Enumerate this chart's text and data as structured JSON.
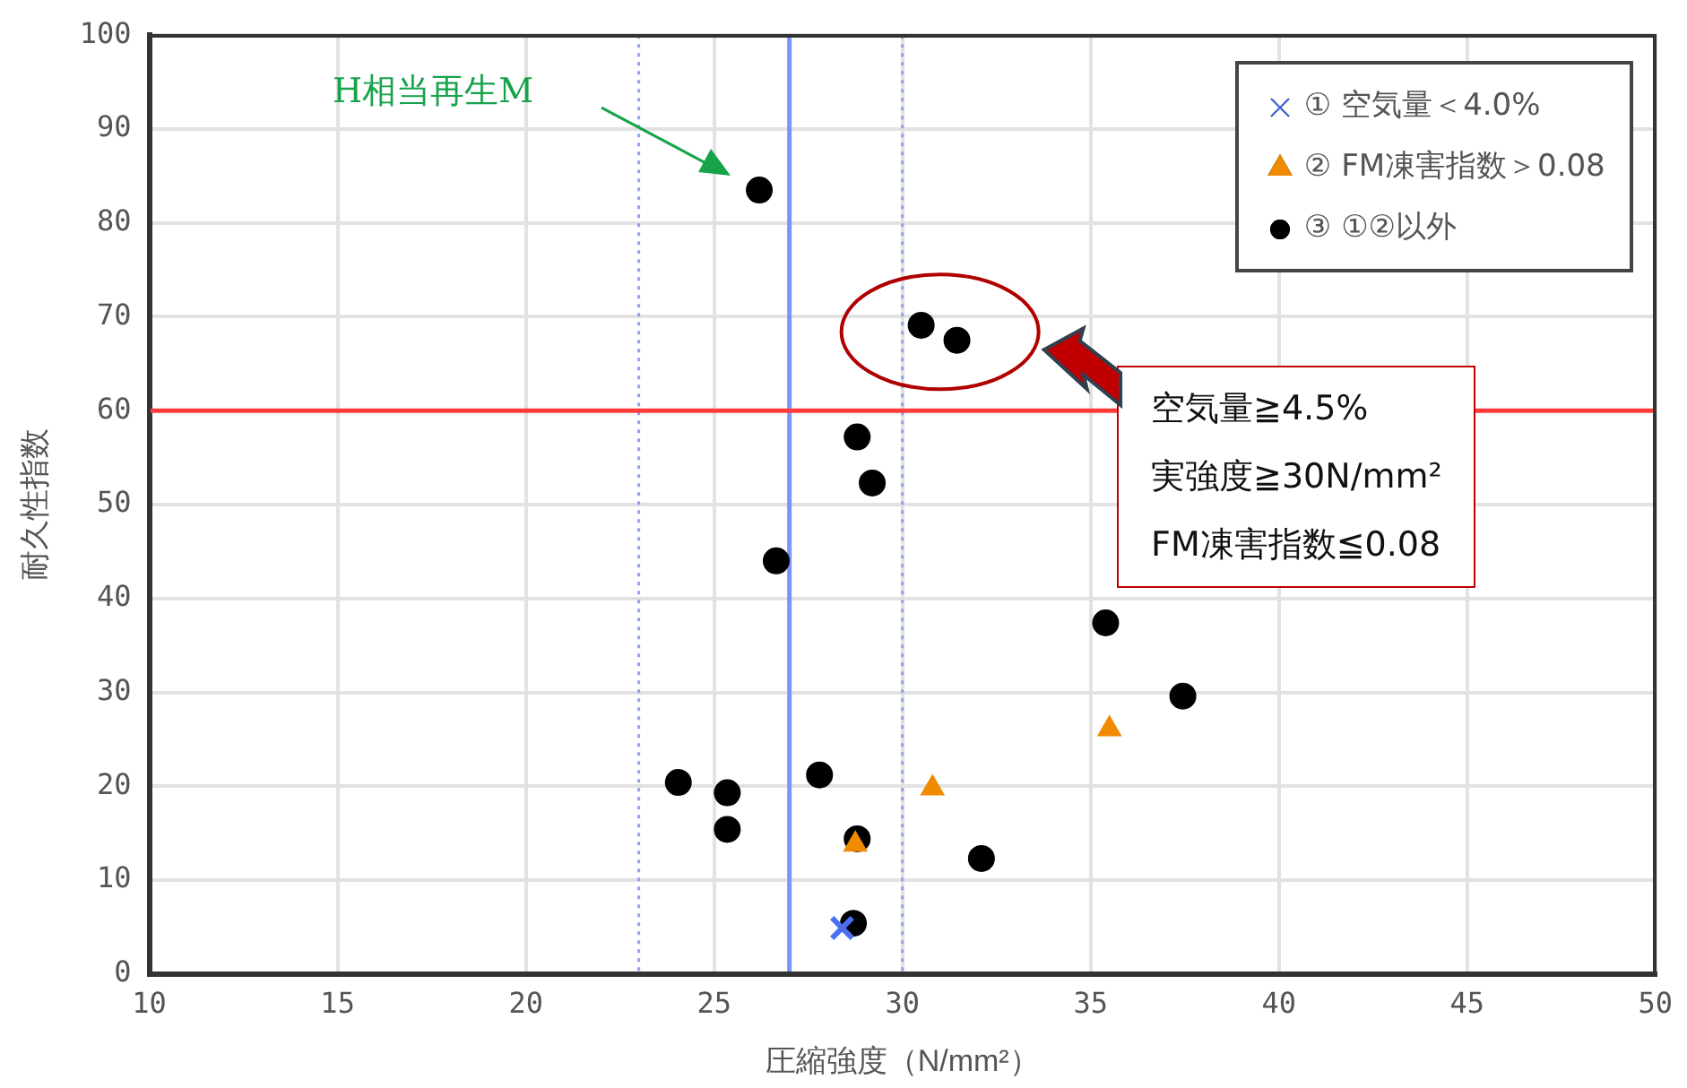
{
  "chart_data": {
    "type": "scatter",
    "xlabel": "圧縮強度（N/mm²）",
    "ylabel": "耐久性指数",
    "xlim": [
      10,
      50
    ],
    "xticks": [
      10,
      15,
      20,
      25,
      30,
      35,
      40,
      45,
      50
    ],
    "ylim": [
      0,
      100
    ],
    "yticks": [
      0,
      10,
      20,
      30,
      40,
      50,
      60,
      70,
      80,
      90,
      100
    ],
    "grid": true,
    "legend": "top right",
    "series": [
      {
        "name": "① 空気量＜4.0%",
        "color": "#4a70f0",
        "marker": "cross",
        "x": [
          28.4
        ],
        "values": [
          4.9
        ]
      },
      {
        "name": "② FM凍害指数＞0.08",
        "color": "#f08a00",
        "marker": "triangle",
        "x": [
          28.75,
          30.8,
          35.5
        ],
        "values": [
          13.8,
          19.8,
          26.1
        ]
      },
      {
        "name": "③ ①②以外",
        "color": "#000000",
        "marker": "circle",
        "x": [
          26.2,
          30.5,
          31.45,
          28.8,
          29.2,
          26.65,
          35.4,
          37.45,
          24.05,
          25.35,
          25.35,
          27.8,
          28.8,
          32.1,
          28.7
        ],
        "values": [
          83.5,
          69.1,
          67.5,
          57.2,
          52.3,
          44,
          37.4,
          29.6,
          20.4,
          19.3,
          15.4,
          21.2,
          14.4,
          12.3,
          5.4
        ]
      }
    ],
    "ref_lines": [
      {
        "axis": "x",
        "value": 27,
        "color": "#7a96f5",
        "line_style": "solid"
      },
      {
        "axis": "x",
        "value": 23,
        "color": "#8aa2f5",
        "line_style": "dotted"
      },
      {
        "axis": "x",
        "value": 30,
        "color": "#8aa2f5",
        "line_style": "dotted"
      },
      {
        "axis": "y",
        "value": 60,
        "color": "#ff3b3b",
        "line_style": "solid"
      }
    ],
    "annotations": [
      "H相当再生M",
      "空気量≧4.5%",
      "実強度≧30N/mm²",
      "FM凍害指数≦0.08"
    ]
  }
}
